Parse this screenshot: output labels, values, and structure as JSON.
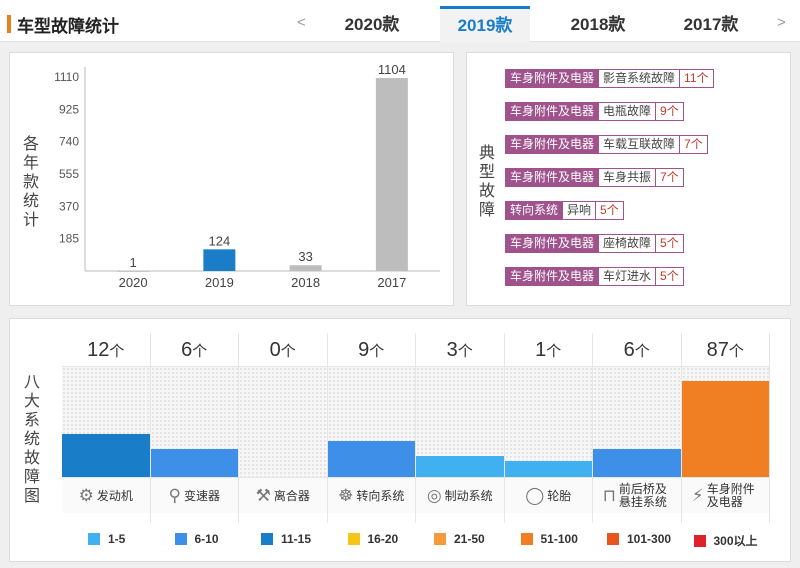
{
  "header": {
    "title": "车型故障统计",
    "prev_arrow": "<",
    "next_arrow": ">",
    "tabs": [
      {
        "label": "2020款"
      },
      {
        "label": "2019款"
      },
      {
        "label": "2018款"
      },
      {
        "label": "2017款"
      }
    ],
    "active_tab": "2019款"
  },
  "year_panel": {
    "side_label": "各年款统计"
  },
  "chart_data": {
    "type": "bar",
    "categories": [
      "2020",
      "2019",
      "2018",
      "2017"
    ],
    "values": [
      1,
      124,
      33,
      1104
    ],
    "colors": [
      "#bdbdbd",
      "#1a7dc8",
      "#bdbdbd",
      "#bdbdbd"
    ],
    "yticks": [
      185,
      370,
      555,
      740,
      925,
      1110
    ],
    "ylim": [
      0,
      1110
    ],
    "grid": false
  },
  "fault_panel": {
    "side_label": "典型故障",
    "items": [
      {
        "category": "车身附件及电器",
        "name": "影音系统故障",
        "count": "11个"
      },
      {
        "category": "车身附件及电器",
        "name": "电瓶故障",
        "count": "9个"
      },
      {
        "category": "车身附件及电器",
        "name": "车载互联故障",
        "count": "7个"
      },
      {
        "category": "车身附件及电器",
        "name": "车身共振",
        "count": "7个"
      },
      {
        "category": "转向系统",
        "name": "异响",
        "count": "5个"
      },
      {
        "category": "车身附件及电器",
        "name": "座椅故障",
        "count": "5个"
      },
      {
        "category": "车身附件及电器",
        "name": "车灯进水",
        "count": "5个"
      }
    ]
  },
  "systems_panel": {
    "side_label": "八大系统故障图",
    "unit": "个",
    "systems": [
      {
        "count": 12,
        "name": "发动机",
        "icon": "engine-icon",
        "glyph": "⚙",
        "color": "#1a7dc8"
      },
      {
        "count": 6,
        "name": "变速器",
        "icon": "gearshift-icon",
        "glyph": "⚲",
        "color": "#3d8fe8"
      },
      {
        "count": 0,
        "name": "离合器",
        "icon": "clutch-icon",
        "glyph": "⚒",
        "color": "#3d8fe8"
      },
      {
        "count": 9,
        "name": "转向系统",
        "icon": "steering-wheel-icon",
        "glyph": "☸",
        "color": "#3d8fe8"
      },
      {
        "count": 3,
        "name": "制动系统",
        "icon": "brake-disc-icon",
        "glyph": "◎",
        "color": "#41b0f0"
      },
      {
        "count": 1,
        "name": "轮胎",
        "icon": "tire-icon",
        "glyph": "◯",
        "color": "#41b0f0"
      },
      {
        "count": 6,
        "name": "前后桥及悬挂系统",
        "icon": "suspension-icon",
        "glyph": "⊓",
        "color": "#3d8fe8"
      },
      {
        "count": 87,
        "name": "车身附件及电器",
        "icon": "battery-icon",
        "glyph": "⚡",
        "color": "#f07f24"
      }
    ],
    "legend": [
      {
        "label": "1-5",
        "color": "#41b0f0"
      },
      {
        "label": "6-10",
        "color": "#3d8fe8"
      },
      {
        "label": "11-15",
        "color": "#1a7dc8"
      },
      {
        "label": "16-20",
        "color": "#f5c518"
      },
      {
        "label": "21-50",
        "color": "#f49a3c"
      },
      {
        "label": "51-100",
        "color": "#f07f24"
      },
      {
        "label": "101-300",
        "color": "#e8551e"
      },
      {
        "label": "300以上",
        "color": "#e0202a"
      }
    ]
  }
}
